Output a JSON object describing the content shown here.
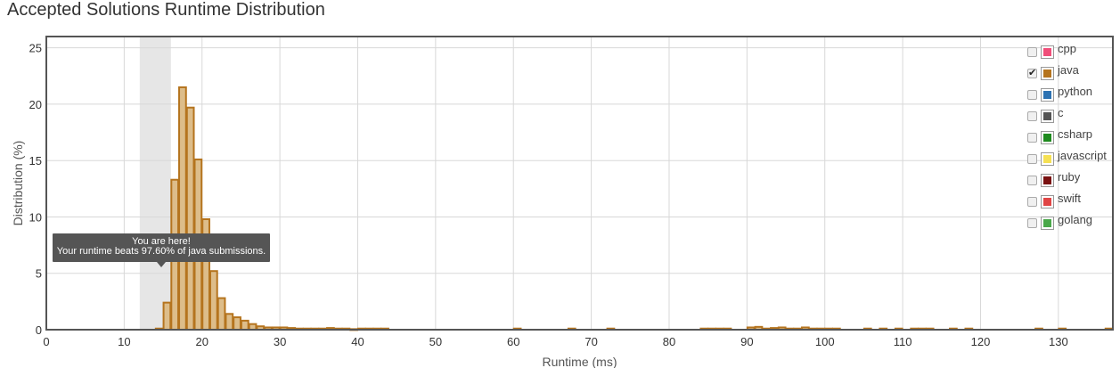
{
  "title": "Accepted Solutions Runtime Distribution",
  "chart_data": {
    "type": "bar",
    "title": "Accepted Solutions Runtime Distribution",
    "xlabel": "Runtime (ms)",
    "ylabel": "Distribution (%)",
    "xlim": [
      0,
      137
    ],
    "ylim": [
      0,
      26
    ],
    "x_ticks": [
      0,
      10,
      20,
      30,
      40,
      50,
      60,
      70,
      80,
      90,
      100,
      110,
      120,
      130
    ],
    "y_ticks": [
      0,
      5,
      10,
      15,
      20,
      25
    ],
    "grid": true,
    "highlight_range": [
      12,
      16
    ],
    "legend_position": "top-right",
    "series": [
      {
        "name": "java",
        "color": "#b5741e",
        "x": [
          14,
          15,
          16,
          17,
          18,
          19,
          20,
          21,
          22,
          23,
          24,
          25,
          26,
          27,
          28,
          29,
          30,
          31,
          32,
          33,
          34,
          35,
          36,
          37,
          38,
          39,
          40,
          41,
          42,
          43,
          60,
          67,
          72,
          84,
          85,
          86,
          87,
          90,
          91,
          92,
          93,
          94,
          95,
          96,
          97,
          98,
          99,
          100,
          101,
          105,
          107,
          109,
          111,
          112,
          113,
          116,
          118,
          127,
          130,
          136
        ],
        "values": [
          0.1,
          2.4,
          13.3,
          21.5,
          19.7,
          15.1,
          9.8,
          5.2,
          2.8,
          1.4,
          1.1,
          0.8,
          0.5,
          0.3,
          0.2,
          0.2,
          0.2,
          0.15,
          0.1,
          0.1,
          0.1,
          0.1,
          0.15,
          0.1,
          0.1,
          0.05,
          0.1,
          0.1,
          0.1,
          0.1,
          0.1,
          0.1,
          0.1,
          0.1,
          0.1,
          0.1,
          0.1,
          0.2,
          0.25,
          0.1,
          0.15,
          0.2,
          0.1,
          0.1,
          0.2,
          0.1,
          0.1,
          0.1,
          0.1,
          0.1,
          0.1,
          0.1,
          0.1,
          0.1,
          0.1,
          0.1,
          0.1,
          0.1,
          0.1,
          0.1
        ]
      }
    ]
  },
  "legend": [
    {
      "label": "cpp",
      "color": "#f04f7a",
      "checked": false
    },
    {
      "label": "java",
      "color": "#b5741e",
      "checked": true
    },
    {
      "label": "python",
      "color": "#2d72b2",
      "checked": false
    },
    {
      "label": "c",
      "color": "#555555",
      "checked": false
    },
    {
      "label": "csharp",
      "color": "#1e8a1e",
      "checked": false
    },
    {
      "label": "javascript",
      "color": "#f5e053",
      "checked": false
    },
    {
      "label": "ruby",
      "color": "#7a1212",
      "checked": false
    },
    {
      "label": "swift",
      "color": "#e04545",
      "checked": false
    },
    {
      "label": "golang",
      "color": "#4aa84a",
      "checked": false
    }
  ],
  "tooltip": {
    "line1": "You are here!",
    "line2": "Your runtime beats 97.60% of java submissions."
  }
}
